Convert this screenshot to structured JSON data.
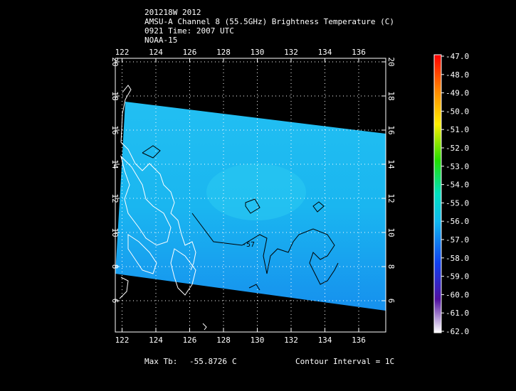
{
  "header": {
    "lines": [
      "201218W 2012",
      "AMSU-A Channel 8 (55.5GHz) Brightness Temperature (C)",
      "0921 Time: 2007 UTC",
      "NOAA-15"
    ]
  },
  "map": {
    "lon_ticks": [
      122,
      124,
      126,
      128,
      130,
      132,
      134,
      136
    ],
    "lat_ticks": [
      20,
      18,
      16,
      14,
      12,
      10,
      8,
      6
    ],
    "contour_label": "-57"
  },
  "colorbar": {
    "labels": [
      "-47.0",
      "-48.0",
      "-49.0",
      "-50.0",
      "-51.0",
      "-52.0",
      "-53.0",
      "-54.0",
      "-55.0",
      "-56.0",
      "-57.0",
      "-58.0",
      "-59.0",
      "-60.0",
      "-61.0",
      "-62.0"
    ]
  },
  "footer": {
    "max_label": "Max Tb:",
    "max_value": "-55.8726",
    "max_unit": "C",
    "contour_interval": "Contour Interval = 1C"
  }
}
